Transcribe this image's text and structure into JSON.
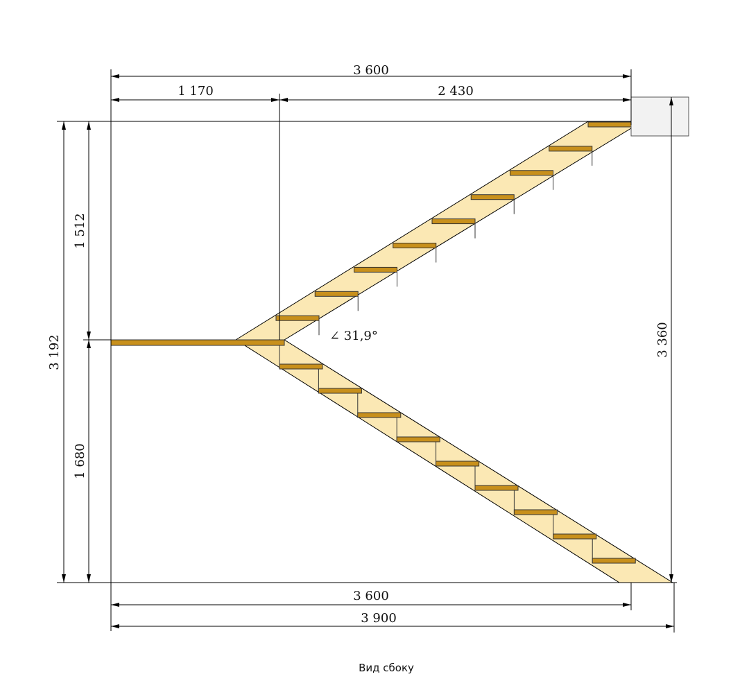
{
  "dimensions": {
    "top_total": "3 600",
    "top_left": "1 170",
    "top_right": "2 430",
    "left_upper": "1 512",
    "left_total": "3 192",
    "left_lower": "1 680",
    "right_total": "3 360",
    "bottom_inner": "3 600",
    "bottom_total": "3 900"
  },
  "angle": "∠ 31,9°",
  "caption": "Вид сбоку"
}
